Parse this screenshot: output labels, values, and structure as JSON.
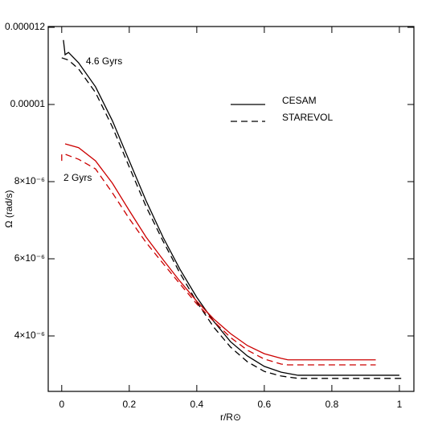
{
  "chart_data": {
    "type": "line",
    "xlabel": "r/R⊙",
    "ylabel": "Ω (rad/s)",
    "xlim": [
      -0.04,
      1.043
    ],
    "ylim": [
      2.5625e-06,
      1.2021e-05
    ],
    "xticks": [
      0,
      0.2,
      0.4,
      0.6,
      0.8,
      1
    ],
    "yticks": [
      {
        "value": 4e-06,
        "label": "4×10⁻⁶"
      },
      {
        "value": 6e-06,
        "label": "6×10⁻⁶"
      },
      {
        "value": 8e-06,
        "label": "8×10⁻⁶"
      },
      1e-05,
      1.2e-05
    ],
    "legend": [
      {
        "name": "CESAM",
        "dash": "solid"
      },
      {
        "name": "STAREVOL",
        "dash": "dashed"
      }
    ],
    "series": [
      {
        "age": "4.6 Gyrs",
        "color": "#000000",
        "curves": [
          {
            "x": [
              0.005,
              0.01,
              0.02,
              0.05,
              0.1,
              0.15,
              0.2,
              0.25,
              0.3,
              0.35,
              0.4,
              0.45,
              0.5,
              0.55,
              0.6,
              0.65,
              0.7,
              0.72,
              1.0
            ],
            "values": [
              1.167e-05,
              1.129e-05,
              1.135e-05,
              1.108e-05,
              1.046e-05,
              9.58e-06,
              8.54e-06,
              7.5e-06,
              6.56e-06,
              5.73e-06,
              5e-06,
              4.38e-06,
              3.85e-06,
              3.48e-06,
              3.21e-06,
              3.06e-06,
              2.98e-06,
              2.98e-06,
              2.98e-06
            ]
          },
          {
            "x": [
              0,
              0.02,
              0.05,
              0.1,
              0.15,
              0.2,
              0.25,
              0.3,
              0.35,
              0.4,
              0.45,
              0.5,
              0.55,
              0.6,
              0.65,
              0.7,
              0.72,
              1.01
            ],
            "values": [
              1.121e-05,
              1.115e-05,
              1.092e-05,
              1.031e-05,
              9.42e-06,
              8.38e-06,
              7.35e-06,
              6.46e-06,
              5.63e-06,
              4.88e-06,
              4.23e-06,
              3.71e-06,
              3.33e-06,
              3.08e-06,
              2.96e-06,
              2.9e-06,
              2.9e-06,
              2.9e-06
            ]
          }
        ]
      },
      {
        "age": "2 Gyrs",
        "color": "#cc0000",
        "curves": [
          {
            "x": [
              0.01,
              0.05,
              0.1,
              0.15,
              0.2,
              0.25,
              0.3,
              0.35,
              0.4,
              0.45,
              0.5,
              0.55,
              0.6,
              0.65,
              0.67,
              0.93
            ],
            "values": [
              8.98e-06,
              8.88e-06,
              8.54e-06,
              7.96e-06,
              7.25e-06,
              6.56e-06,
              5.98e-06,
              5.42e-06,
              4.9e-06,
              4.44e-06,
              4.06e-06,
              3.75e-06,
              3.54e-06,
              3.42e-06,
              3.38e-06,
              3.38e-06
            ]
          },
          {
            "x": [
              0,
              0,
              0.01,
              0.05,
              0.1,
              0.15,
              0.2,
              0.25,
              0.3,
              0.35,
              0.4,
              0.45,
              0.5,
              0.55,
              0.6,
              0.65,
              0.67,
              0.93
            ],
            "values": [
              8.54e-06,
              8.71e-06,
              8.71e-06,
              8.58e-06,
              8.33e-06,
              7.71e-06,
              7.04e-06,
              6.42e-06,
              5.88e-06,
              5.35e-06,
              4.83e-06,
              4.38e-06,
              3.96e-06,
              3.63e-06,
              3.4e-06,
              3.27e-06,
              3.25e-06,
              3.25e-06
            ]
          }
        ]
      }
    ]
  }
}
